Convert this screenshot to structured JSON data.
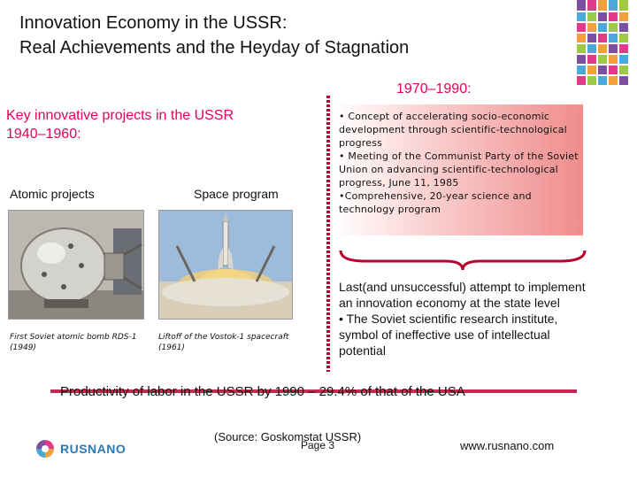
{
  "slide": {
    "title_line1": "Innovation Economy in the USSR:",
    "title_line2": "Real Achievements and the Heyday of Stagnation",
    "period": "1970–1990:",
    "left_heading_line1": "Key innovative projects in the USSR",
    "left_heading_line2": "1940–1960:",
    "label_atomic": "Atomic projects",
    "label_space": "Space program",
    "caption_bomb": "First Soviet atomic bomb RDS-1 (1949)",
    "caption_rocket": "Liftoff of the Vostok-1 spacecraft (1961)",
    "bullets": [
      "• Concept of accelerating socio-economic development through scientific-technological progress",
      "• Meeting of the Communist Party of the Soviet Union on advancing scientific-technological progress, June 11, 1985",
      "•Comprehensive, 20-year science and technology program"
    ],
    "bottom_text_line1": "Last(and unsuccessful) attempt to implement an innovation economy at the state level",
    "bottom_text_line2": "• The Soviet scientific research institute, symbol of ineffective use of intellectual potential",
    "productivity": "Productivity of labor in the USSR by 1990 – 29.4% of that of the USA",
    "source": "(Source: Goskomstat USSR)",
    "page": "Page 3",
    "logo_text": "RUSNANO",
    "website": "www.rusnano.com"
  },
  "colors": {
    "accent": "#e8005a",
    "divider": "#b8002e",
    "rule": "#c62a54",
    "brand": "#2a7ab8"
  },
  "icons": [
    "rusnano-logo-icon",
    "corner-decoration"
  ]
}
